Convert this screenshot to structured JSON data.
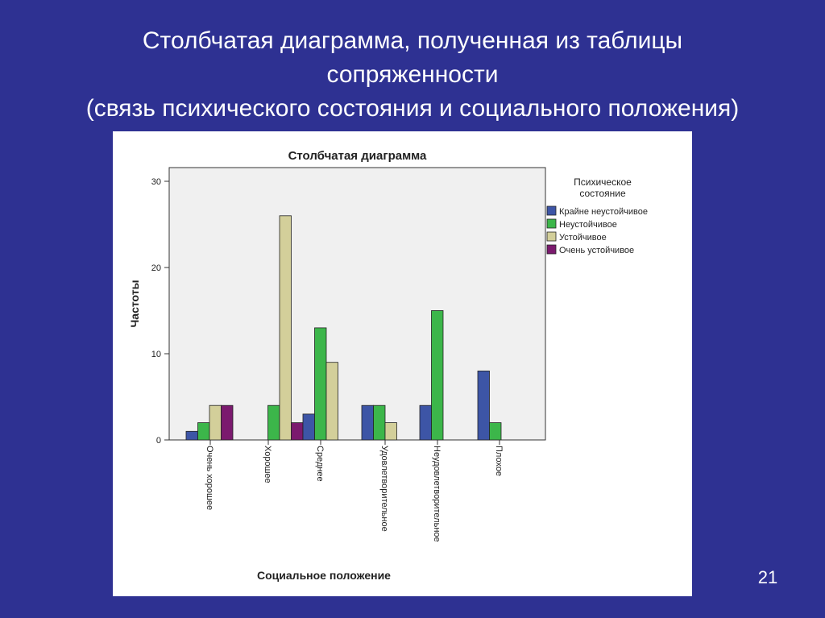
{
  "slide": {
    "title_line1": "Столбчатая диаграмма, полученная из таблицы",
    "title_line2": "сопряженности",
    "title_line3": "(связь психического состояния и социального положения)",
    "page_number": "21"
  },
  "colors": {
    "background": "#2e3192",
    "plot_area": "#f0f0f0",
    "series": [
      "#3d55a6",
      "#3cb64a",
      "#d3cf9a",
      "#7b1a6e"
    ]
  },
  "chart_data": {
    "type": "bar",
    "title": "Столбчатая диаграмма",
    "xlabel": "Социальное положение",
    "ylabel": "Частоты",
    "ylim": [
      0,
      30
    ],
    "yticks": [
      0,
      10,
      20,
      30
    ],
    "grid": false,
    "legend_title_line1": "Психическое",
    "legend_title_line2": "состояние",
    "legend_position": "right",
    "categories": [
      "Очень хорошее",
      "Хорошее",
      "Среднее",
      "Удовлетворительное",
      "Неудовлетворительное",
      "Плохое"
    ],
    "series": [
      {
        "name": "Крайне неустойчивое",
        "values": [
          1,
          0,
          3,
          4,
          4,
          8
        ]
      },
      {
        "name": "Неустойчивое",
        "values": [
          2,
          4,
          13,
          4,
          15,
          2
        ]
      },
      {
        "name": "Устойчивое",
        "values": [
          4,
          26,
          9,
          2,
          0,
          0
        ]
      },
      {
        "name": "Очень устойчивое",
        "values": [
          4,
          2,
          0,
          0,
          0,
          0
        ]
      }
    ]
  }
}
